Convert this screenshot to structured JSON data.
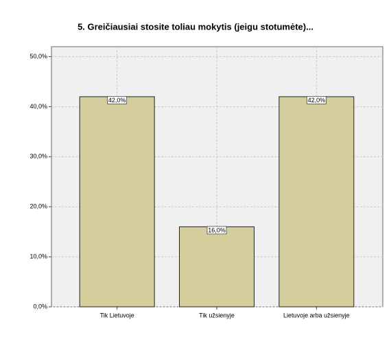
{
  "chart_data": {
    "type": "bar",
    "title": "5. Greičiausiai stosite toliau mokytis (jeigu stotumėte)...",
    "categories": [
      "Tik Lietuvoje",
      "Tik užsienyje",
      "Lietuvoje arba užsienyje"
    ],
    "values": [
      42,
      16,
      42
    ],
    "value_labels": [
      "42,0%",
      "16,0%",
      "42,0%"
    ],
    "color": "#d3ce9c",
    "ylim": [
      0,
      52
    ],
    "yticks": [
      {
        "value": 0,
        "label": "0,0%"
      },
      {
        "value": 10,
        "label": "10,0%"
      },
      {
        "value": 20,
        "label": "20,0%"
      },
      {
        "value": 30,
        "label": "30,0%"
      },
      {
        "value": 40,
        "label": "40,0%"
      },
      {
        "value": 50,
        "label": "50,0%"
      }
    ],
    "grid": true
  }
}
